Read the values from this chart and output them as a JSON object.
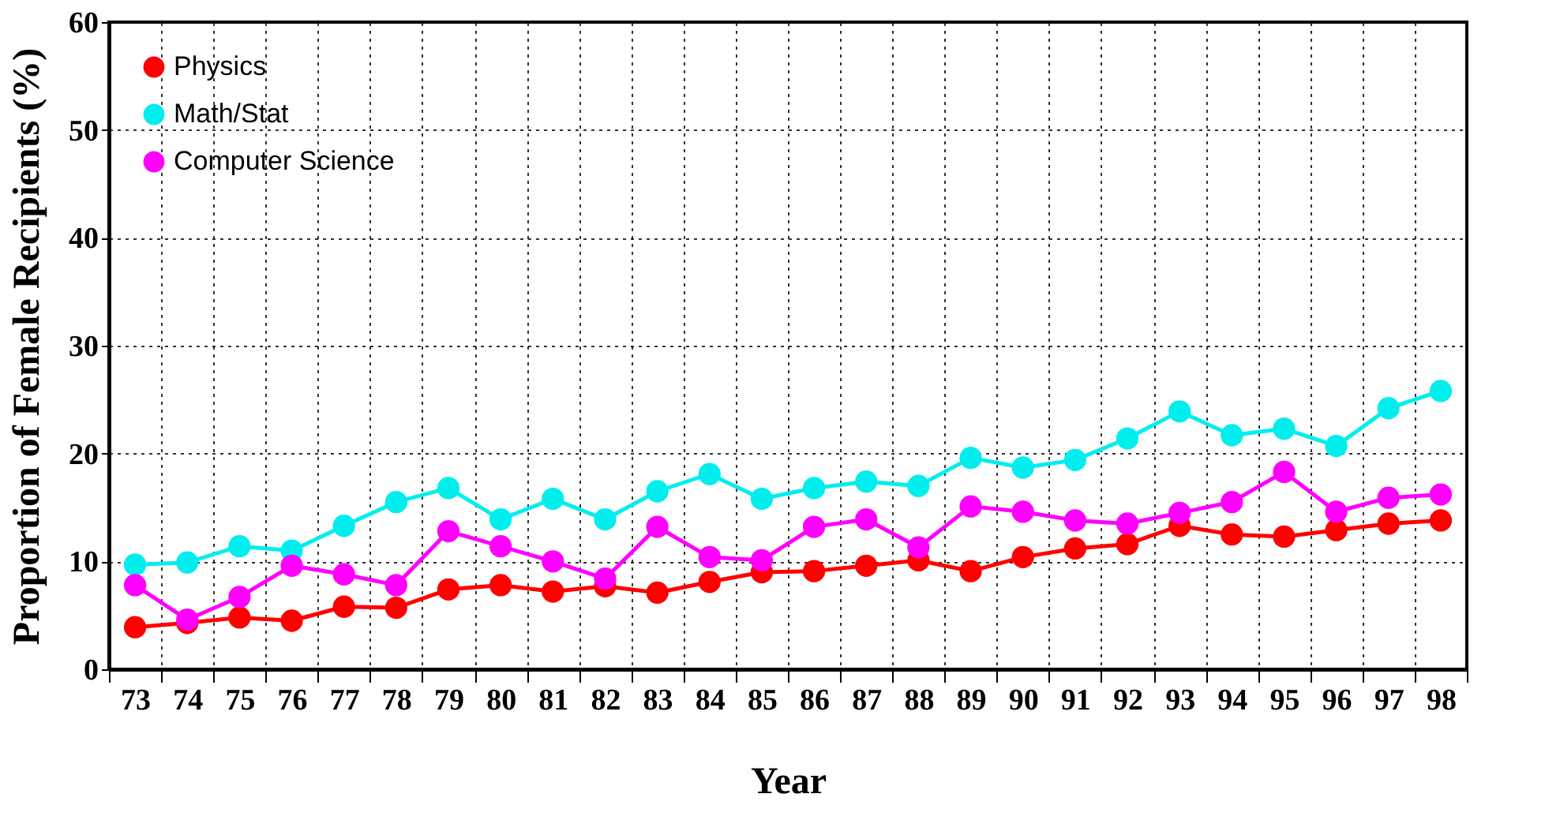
{
  "chart_data": {
    "type": "line",
    "xlabel": "Year",
    "ylabel": "Proportion of Female Recipients (%)",
    "categories": [
      "73",
      "74",
      "75",
      "76",
      "77",
      "78",
      "79",
      "80",
      "81",
      "82",
      "83",
      "84",
      "85",
      "86",
      "87",
      "88",
      "89",
      "90",
      "91",
      "92",
      "93",
      "94",
      "95",
      "96",
      "97",
      "98"
    ],
    "series": [
      {
        "name": "Physics",
        "color": "#ff0000",
        "values": [
          3.9,
          4.3,
          4.8,
          4.5,
          5.8,
          5.7,
          7.4,
          7.8,
          7.2,
          7.7,
          7.1,
          8.1,
          9.0,
          9.1,
          9.6,
          10.1,
          9.1,
          10.4,
          11.2,
          11.6,
          13.3,
          12.5,
          12.3,
          12.9,
          13.5,
          13.8
        ]
      },
      {
        "name": "Math/Stat",
        "color": "#00eeee",
        "values": [
          9.7,
          9.9,
          11.4,
          11.0,
          13.3,
          15.5,
          16.8,
          13.9,
          15.8,
          13.9,
          16.5,
          18.1,
          15.8,
          16.8,
          17.4,
          17.0,
          19.6,
          18.7,
          19.4,
          21.4,
          23.9,
          21.7,
          22.3,
          20.7,
          24.2,
          25.8
        ]
      },
      {
        "name": "Computer Science",
        "color": "#ff00ff",
        "values": [
          7.8,
          4.6,
          6.7,
          9.6,
          8.8,
          7.8,
          12.8,
          11.4,
          10.0,
          8.4,
          13.2,
          10.4,
          10.1,
          13.2,
          13.9,
          11.3,
          15.1,
          14.6,
          13.8,
          13.5,
          14.5,
          15.5,
          18.3,
          14.6,
          15.9,
          16.2
        ]
      }
    ],
    "ylim": [
      0,
      60
    ],
    "yticks": [
      0,
      10,
      20,
      30,
      40,
      50,
      60
    ],
    "grid": true,
    "legend": "top left",
    "marker": "circle",
    "line_style": "solid"
  }
}
